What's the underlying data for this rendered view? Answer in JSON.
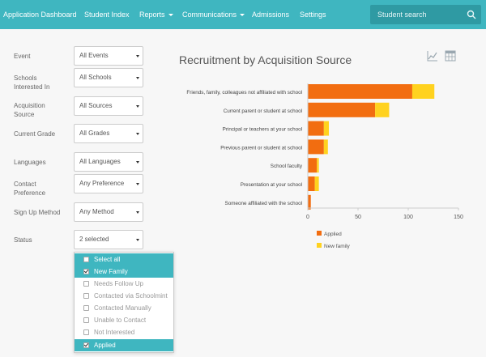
{
  "nav": {
    "items": [
      {
        "label": "Application Dashboard"
      },
      {
        "label": "Student Index"
      },
      {
        "label": "Reports"
      },
      {
        "label": "Communications"
      },
      {
        "label": "Admissions"
      },
      {
        "label": "Settings"
      }
    ],
    "search_placeholder": "Student search"
  },
  "filters": [
    {
      "label": "Event",
      "value": "All Events"
    },
    {
      "label": "Schools Interested In",
      "value": "All Schools"
    },
    {
      "label": "Acquisition Source",
      "value": "All Sources"
    },
    {
      "label": "Current Grade",
      "value": "All Grades"
    },
    {
      "label": "Languages",
      "value": "All Languages"
    },
    {
      "label": "Contact Preference",
      "value": "Any Preference"
    },
    {
      "label": "Sign Up Method",
      "value": "Any Method"
    },
    {
      "label": "Status",
      "value": "2 selected"
    }
  ],
  "status_dropdown": {
    "options": [
      {
        "label": "Select all",
        "checked": false
      },
      {
        "label": "New Family",
        "checked": true
      },
      {
        "label": "Needs Follow Up",
        "checked": false
      },
      {
        "label": "Contacted via Schoolmint",
        "checked": false
      },
      {
        "label": "Contacted Manually",
        "checked": false
      },
      {
        "label": "Unable to Contact",
        "checked": false
      },
      {
        "label": "Not Interested",
        "checked": false
      },
      {
        "label": "Applied",
        "checked": true
      }
    ]
  },
  "chart": {
    "title": "Recruitment by Acquisition Source",
    "icons": [
      "line-chart-icon",
      "table-icon"
    ]
  },
  "colors": {
    "accent": "#3fb6c0",
    "applied": "#f26d10",
    "new_family": "#ffd21f"
  },
  "chart_data": {
    "type": "bar",
    "orientation": "horizontal",
    "stacked": true,
    "title": "Recruitment by Acquisition Source",
    "categories": [
      "Friends, family, colleagues not affiliated with school",
      "Current parent or student at school",
      "Principal or teachers at your school",
      "Previous parent or student at school",
      "School faculty",
      "Presentation at your school",
      "Someone affiliated with the school"
    ],
    "series": [
      {
        "name": "Applied",
        "values": [
          104,
          67,
          16,
          16,
          9,
          7,
          3
        ]
      },
      {
        "name": "New family",
        "values": [
          22,
          14,
          5,
          4,
          2,
          4,
          0
        ]
      }
    ],
    "xlim": [
      0,
      150
    ],
    "xticks": [
      "0",
      "50",
      "100",
      "150"
    ],
    "legend": "bottom-left"
  }
}
